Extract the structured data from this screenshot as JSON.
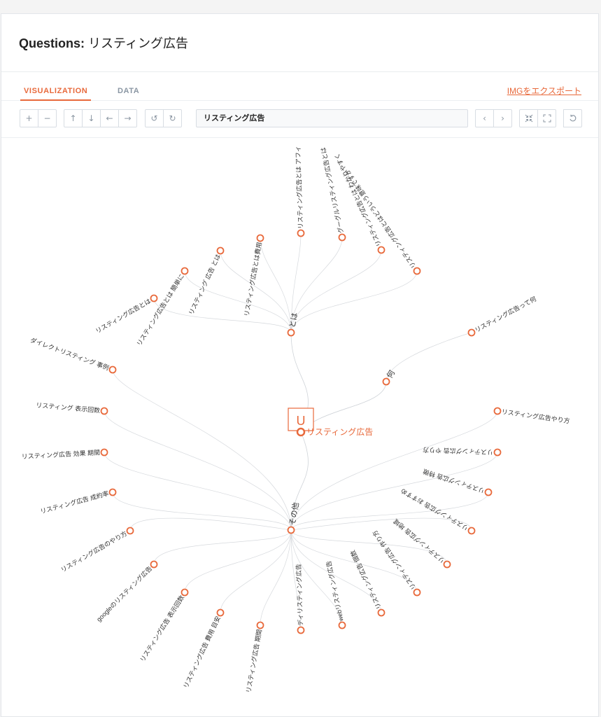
{
  "header": {
    "title_prefix": "Questions:",
    "title_keyword": "リスティング広告"
  },
  "tabs": [
    {
      "label": "VISUALIZATION",
      "active": true
    },
    {
      "label": "DATA",
      "active": false
    }
  ],
  "export_label": "IMGをエクスポート",
  "toolbar": {
    "zoom_in": "+",
    "zoom_out": "−",
    "up": "↑",
    "down": "↓",
    "left": "←",
    "right": "→",
    "undo": "↺",
    "redo": "↻",
    "search_value": "リスティング広告",
    "prev": "‹",
    "next": "›",
    "collapse": "collapse-icon",
    "expand": "expand-icon",
    "reset": "reset-icon"
  },
  "accent_color": "#e8693b",
  "graph": {
    "root": {
      "label": "リスティング広告",
      "icon_letter": "U"
    },
    "hubs": [
      {
        "key": "toha",
        "label": "とは",
        "children": [
          "リスティング広告とは",
          "リスティング広告とは 簡単に",
          "リスティング 広告 とは",
          "リスティング広告とは費用",
          "リスティング広告とは アフィ",
          "グーグルリスティング広告とは",
          "リスティング広告とは わかりやすく",
          "リスティング広告とはどういう意味ですか"
        ]
      },
      {
        "key": "nani",
        "label": "何",
        "children": [
          "リスティング広告って何"
        ]
      },
      {
        "key": "sonota",
        "label": "その他",
        "children": [
          "ダイレクトリスティング 事例",
          "リスティング 表示回数",
          "リスティング広告 効果 期間",
          "リスティング広告 成約率",
          "リスティング広告のやり方",
          "googleのリスティング広告",
          "リスティング広告 表示回数",
          "リスティング広告 費用 目安",
          "リスティング広告 期間",
          "ディリスティング広告",
          "webリスティング広告",
          "リスティング広告 個数",
          "リスティング広告 作り方",
          "リスティング広告 地域",
          "リスティング広告 おすすめ",
          "リスティング広告 特徴",
          "リスティング広告 やり方",
          "リスティング広告やり方"
        ]
      }
    ]
  }
}
